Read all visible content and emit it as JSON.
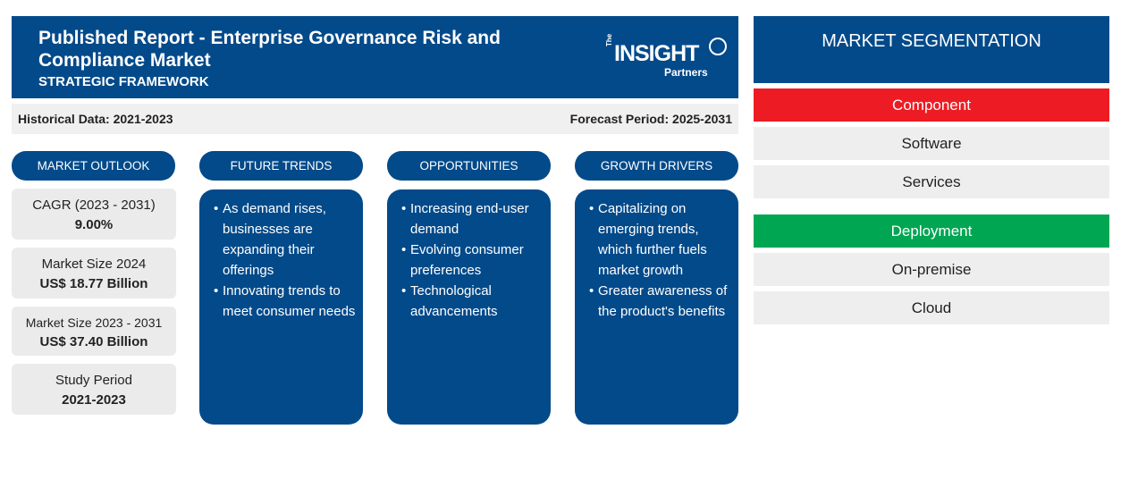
{
  "header": {
    "title": "Published Report - Enterprise Governance Risk and Compliance Market",
    "subtitle": "STRATEGIC FRAMEWORK",
    "logo": {
      "the": "The",
      "insight": "INSIGHT",
      "partners": "Partners"
    }
  },
  "period": {
    "historical": "Historical Data: 2021-2023",
    "forecast": "Forecast Period: 2025-2031"
  },
  "market_outlook": {
    "heading": "MARKET OUTLOOK",
    "cards": [
      {
        "label": "CAGR (2023 - 2031)",
        "value": "9.00%"
      },
      {
        "label": "Market Size 2024",
        "value": "US$ 18.77 Billion"
      },
      {
        "label": "Market Size 2023 - 2031",
        "value": "US$ 37.40 Billion"
      },
      {
        "label": "Study Period",
        "value": "2021-2023"
      }
    ]
  },
  "future_trends": {
    "heading": "FUTURE TRENDS",
    "items": [
      "As demand rises, businesses are expanding their offerings",
      "Innovating trends to meet consumer needs"
    ]
  },
  "opportunities": {
    "heading": "OPPORTUNITIES",
    "items": [
      "Increasing end-user demand",
      "Evolving consumer preferences",
      "Technological advancements"
    ]
  },
  "growth_drivers": {
    "heading": "GROWTH DRIVERS",
    "items": [
      "Capitalizing on emerging trends, which further fuels market growth",
      "Greater awareness of the product's benefits"
    ]
  },
  "segmentation": {
    "heading": "MARKET SEGMENTATION",
    "categories": [
      {
        "name": "Component",
        "color": "#ed1c24",
        "items": [
          "Software",
          "Services"
        ]
      },
      {
        "name": "Deployment",
        "color": "#00a651",
        "items": [
          "On-premise",
          "Cloud"
        ]
      }
    ]
  },
  "colors": {
    "primary": "#034a8a",
    "card_bg": "#ebebeb"
  }
}
